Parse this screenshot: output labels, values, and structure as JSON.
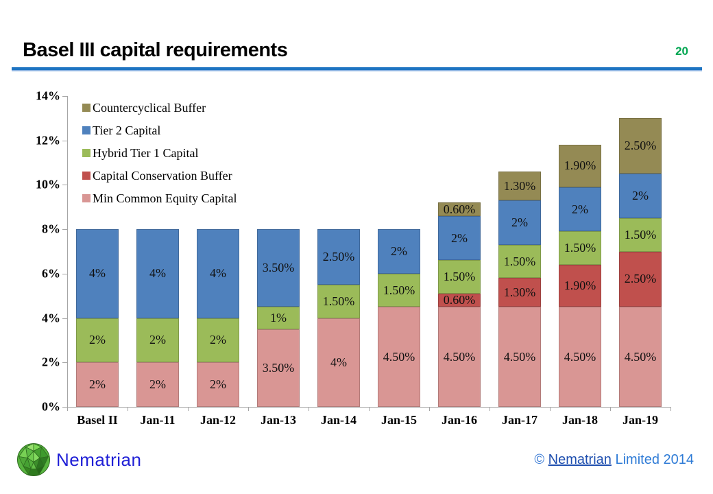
{
  "header": {
    "title": "Basel III capital requirements",
    "page_number": "20"
  },
  "footer": {
    "brand": "Nematrian",
    "copyright_symbol": "©",
    "copyright_link": "Nematrian",
    "copyright_rest": "Limited 2014"
  },
  "colors": {
    "divider_blue": "#1E74C2",
    "page_number_green": "#00A651",
    "axis_gray": "#A6A6A6",
    "min_common_equity": "#D99694",
    "capital_conservation": "#C0504D",
    "hybrid_tier1": "#9BBB59",
    "tier2": "#4F81BD",
    "countercyclical": "#948A54"
  },
  "chart_data": {
    "type": "bar",
    "stacked": true,
    "grid": false,
    "legend_position": "top-left-inside",
    "ylim": [
      0,
      14
    ],
    "y_tick_step": 2,
    "y_tick_labels": [
      "0%",
      "2%",
      "4%",
      "6%",
      "8%",
      "10%",
      "12%",
      "14%"
    ],
    "categories": [
      "Basel II",
      "Jan-11",
      "Jan-12",
      "Jan-13",
      "Jan-14",
      "Jan-15",
      "Jan-16",
      "Jan-17",
      "Jan-18",
      "Jan-19"
    ],
    "series": [
      {
        "name": "Min Common Equity Capital",
        "color": "#D99694",
        "values": [
          2,
          2,
          2,
          3.5,
          4,
          4.5,
          4.5,
          4.5,
          4.5,
          4.5
        ],
        "labels": [
          "2%",
          "2%",
          "2%",
          "3.50%",
          "4%",
          "4.50%",
          "4.50%",
          "4.50%",
          "4.50%",
          "4.50%"
        ]
      },
      {
        "name": "Capital Conservation Buffer",
        "color": "#C0504D",
        "values": [
          0,
          0,
          0,
          0,
          0,
          0,
          0.6,
          1.3,
          1.9,
          2.5
        ],
        "labels": [
          "",
          "",
          "",
          "",
          "",
          "",
          "0.60%",
          "1.30%",
          "1.90%",
          "2.50%"
        ]
      },
      {
        "name": "Hybrid Tier 1 Capital",
        "color": "#9BBB59",
        "values": [
          2,
          2,
          2,
          1,
          1.5,
          1.5,
          1.5,
          1.5,
          1.5,
          1.5
        ],
        "labels": [
          "2%",
          "2%",
          "2%",
          "1%",
          "1.50%",
          "1.50%",
          "1.50%",
          "1.50%",
          "1.50%",
          "1.50%"
        ]
      },
      {
        "name": "Tier 2 Capital",
        "color": "#4F81BD",
        "values": [
          4,
          4,
          4,
          3.5,
          2.5,
          2,
          2,
          2,
          2,
          2
        ],
        "labels": [
          "4%",
          "4%",
          "4%",
          "3.50%",
          "2.50%",
          "2%",
          "2%",
          "2%",
          "2%",
          "2%"
        ]
      },
      {
        "name": "Countercyclical Buffer",
        "color": "#948A54",
        "values": [
          0,
          0,
          0,
          0,
          0,
          0,
          0.6,
          1.3,
          1.9,
          2.5
        ],
        "labels": [
          "",
          "",
          "",
          "",
          "",
          "",
          "0.60%",
          "1.30%",
          "1.90%",
          "2.50%"
        ]
      }
    ],
    "legend_order_top_to_bottom": [
      "Countercyclical Buffer",
      "Tier 2 Capital",
      "Hybrid Tier 1 Capital",
      "Capital Conservation Buffer",
      "Min Common Equity Capital"
    ]
  }
}
